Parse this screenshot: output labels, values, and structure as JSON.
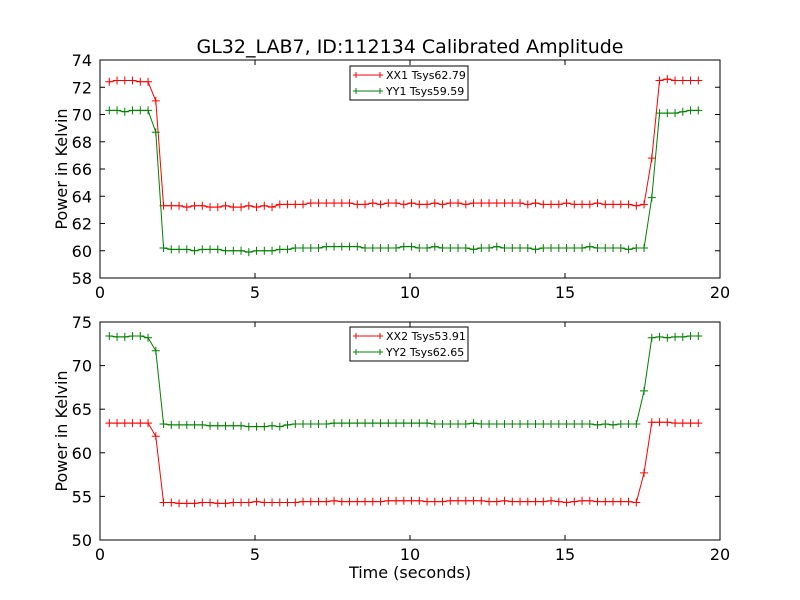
{
  "chart_data": [
    {
      "type": "line",
      "title": "GL32_LAB7, ID:112134 Calibrated Amplitude",
      "xlabel": "",
      "ylabel": "Power in Kelvin",
      "xlim": [
        0,
        20
      ],
      "ylim": [
        58,
        74
      ],
      "xticks": [
        0,
        5,
        10,
        15,
        20
      ],
      "yticks": [
        58,
        60,
        62,
        64,
        66,
        68,
        70,
        72,
        74
      ],
      "legend_position": "top-center",
      "x": [
        0.3,
        0.55,
        0.8,
        1.05,
        1.3,
        1.55,
        1.8,
        2.05,
        2.3,
        2.55,
        2.8,
        3.05,
        3.3,
        3.55,
        3.8,
        4.05,
        4.3,
        4.55,
        4.8,
        5.05,
        5.3,
        5.55,
        5.8,
        6.05,
        6.3,
        6.55,
        6.8,
        7.05,
        7.3,
        7.55,
        7.8,
        8.05,
        8.3,
        8.55,
        8.8,
        9.05,
        9.3,
        9.55,
        9.8,
        10.05,
        10.3,
        10.55,
        10.8,
        11.05,
        11.3,
        11.55,
        11.8,
        12.05,
        12.3,
        12.55,
        12.8,
        13.05,
        13.3,
        13.55,
        13.8,
        14.05,
        14.3,
        14.55,
        14.8,
        15.05,
        15.3,
        15.55,
        15.8,
        16.05,
        16.3,
        16.55,
        16.8,
        17.05,
        17.3,
        17.55,
        17.8,
        18.05,
        18.3,
        18.55,
        18.8,
        19.05,
        19.3
      ],
      "series": [
        {
          "name": "XX1 Tsys62.79",
          "color": "#ff0000",
          "values": [
            72.4,
            72.5,
            72.5,
            72.5,
            72.4,
            72.4,
            71.0,
            63.3,
            63.3,
            63.3,
            63.2,
            63.3,
            63.3,
            63.2,
            63.2,
            63.3,
            63.2,
            63.2,
            63.3,
            63.2,
            63.3,
            63.2,
            63.4,
            63.4,
            63.4,
            63.4,
            63.5,
            63.5,
            63.5,
            63.5,
            63.5,
            63.5,
            63.4,
            63.4,
            63.5,
            63.4,
            63.5,
            63.5,
            63.4,
            63.5,
            63.4,
            63.4,
            63.5,
            63.4,
            63.5,
            63.5,
            63.4,
            63.5,
            63.5,
            63.5,
            63.5,
            63.5,
            63.5,
            63.5,
            63.4,
            63.5,
            63.4,
            63.4,
            63.4,
            63.5,
            63.4,
            63.4,
            63.4,
            63.5,
            63.4,
            63.4,
            63.4,
            63.4,
            63.3,
            63.4,
            66.8,
            72.5,
            72.6,
            72.5,
            72.5,
            72.5,
            72.5
          ]
        },
        {
          "name": "YY1 Tsys59.59",
          "color": "#008000",
          "values": [
            70.3,
            70.3,
            70.2,
            70.3,
            70.3,
            70.3,
            68.7,
            60.2,
            60.1,
            60.1,
            60.1,
            60.0,
            60.1,
            60.1,
            60.1,
            60.0,
            60.0,
            60.0,
            59.9,
            60.0,
            60.0,
            60.0,
            60.1,
            60.1,
            60.2,
            60.2,
            60.2,
            60.2,
            60.3,
            60.3,
            60.3,
            60.3,
            60.3,
            60.2,
            60.2,
            60.2,
            60.2,
            60.2,
            60.3,
            60.3,
            60.2,
            60.2,
            60.3,
            60.2,
            60.2,
            60.2,
            60.2,
            60.1,
            60.2,
            60.2,
            60.3,
            60.2,
            60.2,
            60.2,
            60.2,
            60.1,
            60.2,
            60.2,
            60.2,
            60.2,
            60.2,
            60.2,
            60.3,
            60.2,
            60.2,
            60.2,
            60.2,
            60.1,
            60.2,
            60.2,
            63.9,
            70.1,
            70.1,
            70.1,
            70.2,
            70.3,
            70.3
          ]
        }
      ]
    },
    {
      "type": "line",
      "title": "",
      "xlabel": "Time (seconds)",
      "ylabel": "Power in Kelvin",
      "xlim": [
        0,
        20
      ],
      "ylim": [
        50,
        75
      ],
      "xticks": [
        0,
        5,
        10,
        15,
        20
      ],
      "yticks": [
        50,
        55,
        60,
        65,
        70,
        75
      ],
      "legend_position": "top-center",
      "x": [
        0.3,
        0.55,
        0.8,
        1.05,
        1.3,
        1.55,
        1.8,
        2.05,
        2.3,
        2.55,
        2.8,
        3.05,
        3.3,
        3.55,
        3.8,
        4.05,
        4.3,
        4.55,
        4.8,
        5.05,
        5.3,
        5.55,
        5.8,
        6.05,
        6.3,
        6.55,
        6.8,
        7.05,
        7.3,
        7.55,
        7.8,
        8.05,
        8.3,
        8.55,
        8.8,
        9.05,
        9.3,
        9.55,
        9.8,
        10.05,
        10.3,
        10.55,
        10.8,
        11.05,
        11.3,
        11.55,
        11.8,
        12.05,
        12.3,
        12.55,
        12.8,
        13.05,
        13.3,
        13.55,
        13.8,
        14.05,
        14.3,
        14.55,
        14.8,
        15.05,
        15.3,
        15.55,
        15.8,
        16.05,
        16.3,
        16.55,
        16.8,
        17.05,
        17.3,
        17.55,
        17.8,
        18.05,
        18.3,
        18.55,
        18.8,
        19.05,
        19.3
      ],
      "series": [
        {
          "name": "XX2 Tsys53.91",
          "color": "#ff0000",
          "values": [
            63.4,
            63.4,
            63.4,
            63.4,
            63.4,
            63.4,
            61.9,
            54.3,
            54.3,
            54.2,
            54.2,
            54.2,
            54.3,
            54.3,
            54.2,
            54.2,
            54.3,
            54.3,
            54.3,
            54.4,
            54.3,
            54.3,
            54.3,
            54.3,
            54.3,
            54.4,
            54.4,
            54.4,
            54.4,
            54.5,
            54.4,
            54.4,
            54.4,
            54.4,
            54.4,
            54.4,
            54.5,
            54.5,
            54.5,
            54.5,
            54.5,
            54.4,
            54.4,
            54.4,
            54.5,
            54.5,
            54.5,
            54.5,
            54.5,
            54.4,
            54.4,
            54.5,
            54.4,
            54.4,
            54.4,
            54.4,
            54.4,
            54.5,
            54.4,
            54.3,
            54.4,
            54.5,
            54.5,
            54.4,
            54.4,
            54.4,
            54.4,
            54.4,
            54.3,
            57.7,
            63.5,
            63.5,
            63.5,
            63.4,
            63.4,
            63.4,
            63.4
          ]
        },
        {
          "name": "YY2 Tsys62.65",
          "color": "#008000",
          "values": [
            73.4,
            73.3,
            73.3,
            73.4,
            73.4,
            73.2,
            71.7,
            63.3,
            63.2,
            63.2,
            63.2,
            63.2,
            63.2,
            63.1,
            63.1,
            63.1,
            63.1,
            63.1,
            63.0,
            63.0,
            63.0,
            63.1,
            63.0,
            63.2,
            63.3,
            63.3,
            63.3,
            63.3,
            63.3,
            63.4,
            63.4,
            63.4,
            63.4,
            63.4,
            63.4,
            63.4,
            63.4,
            63.4,
            63.4,
            63.4,
            63.4,
            63.4,
            63.3,
            63.3,
            63.3,
            63.3,
            63.3,
            63.4,
            63.3,
            63.3,
            63.3,
            63.3,
            63.3,
            63.3,
            63.3,
            63.3,
            63.3,
            63.3,
            63.3,
            63.3,
            63.3,
            63.3,
            63.3,
            63.2,
            63.3,
            63.2,
            63.3,
            63.3,
            63.3,
            67.1,
            73.2,
            73.3,
            73.2,
            73.3,
            73.3,
            73.4,
            73.4
          ]
        }
      ]
    }
  ]
}
